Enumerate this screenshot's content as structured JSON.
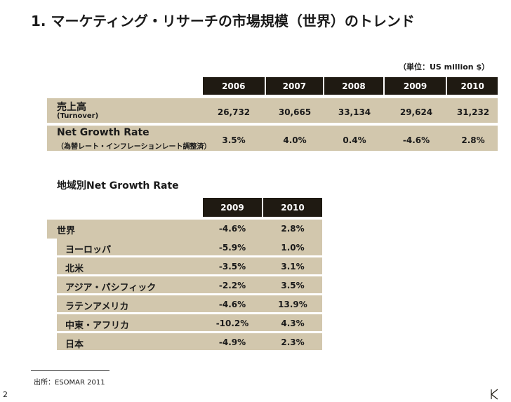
{
  "title": "1. マーケティング・リサーチの市場規模（世界）のトレンド",
  "unit": "（単位：US million $）",
  "main_table": {
    "years": [
      "2006",
      "2007",
      "2008",
      "2009",
      "2010"
    ],
    "turnover_label": "売上高",
    "turnover_sub": "(Turnover)",
    "turnover_values": [
      "26,732",
      "30,665",
      "33,134",
      "29,624",
      "31,232"
    ],
    "growth_label": "Net Growth Rate",
    "growth_sub": "（為替レート・インフレーションレート調整済）",
    "growth_values": [
      "3.5%",
      "4.0%",
      "0.4%",
      "-4.6%",
      "2.8%"
    ]
  },
  "regional": {
    "title": "地域別Net Growth Rate",
    "years": [
      "2009",
      "2010"
    ],
    "rows": [
      {
        "label": "世界",
        "v2009": "-4.6%",
        "v2010": "2.8%"
      },
      {
        "label": "ヨーロッパ",
        "v2009": "-5.9%",
        "v2010": "1.0%"
      },
      {
        "label": "北米",
        "v2009": "-3.5%",
        "v2010": "3.1%"
      },
      {
        "label": "アジア・パシフィック",
        "v2009": "-2.2%",
        "v2010": "3.5%"
      },
      {
        "label": "ラテンアメリカ",
        "v2009": "-4.6%",
        "v2010": "13.9%"
      },
      {
        "label": "中東・アフリカ",
        "v2009": "-10.2%",
        "v2010": "4.3%"
      },
      {
        "label": "日本",
        "v2009": "-4.9%",
        "v2010": "2.3%"
      }
    ]
  },
  "source": "出所：ESOMAR 2011",
  "page_number": "2",
  "colors": {
    "dark": "#1f1a12",
    "band": "#d2c7ad"
  },
  "logo_icon": "k-logo-icon"
}
